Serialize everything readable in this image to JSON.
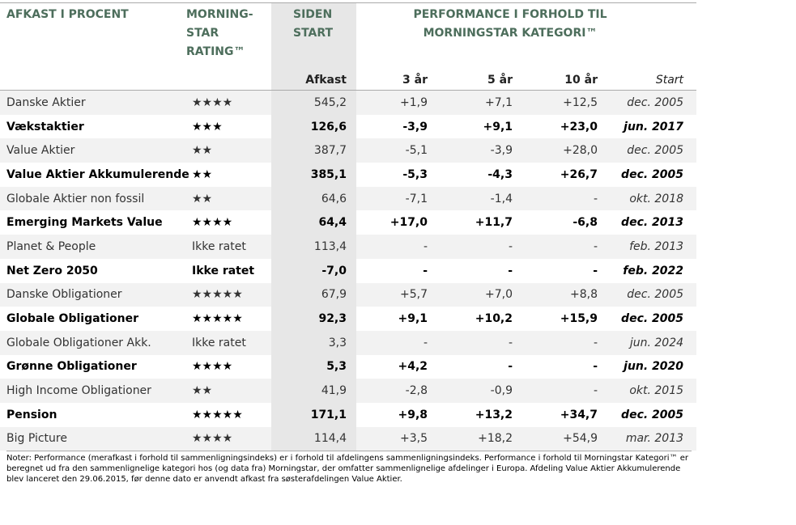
{
  "header": {
    "name": "AFKAST I PROCENT",
    "rating": [
      "MORNING-",
      "STAR",
      "RATING™"
    ],
    "since_start": [
      "SIDEN",
      "START"
    ],
    "performance": [
      "PERFORMANCE I FORHOLD TIL",
      "MORNINGSTAR KATEGORI™"
    ]
  },
  "subheader": [
    "Afkast",
    "3 år",
    "5 år",
    "10 år",
    "Start"
  ],
  "table": {
    "rows": [
      [
        "Danske Aktier",
        "★★★★",
        "545,2",
        "+1,9",
        "+7,1",
        "+12,5",
        "dec. 2005"
      ],
      [
        "Vækstaktier",
        "★★★",
        "126,6",
        "-3,9",
        "+9,1",
        "+23,0",
        "jun. 2017"
      ],
      [
        "Value Aktier",
        "★★",
        "387,7",
        "-5,1",
        "-3,9",
        "+28,0",
        "dec. 2005"
      ],
      [
        "Value Aktier Akkumulerende",
        "★★",
        "385,1",
        "-5,3",
        "-4,3",
        "+26,7",
        "dec. 2005"
      ],
      [
        "Globale Aktier non fossil",
        "★★",
        "64,6",
        "-7,1",
        "-1,4",
        "-",
        "okt. 2018"
      ],
      [
        "Emerging Markets Value",
        "★★★★",
        "64,4",
        "+17,0",
        "+11,7",
        "-6,8",
        "dec. 2013"
      ],
      [
        "Planet & People",
        "Ikke ratet",
        "113,4",
        "-",
        "-",
        "-",
        "feb. 2013"
      ],
      [
        "Net Zero 2050",
        "Ikke ratet",
        "-7,0",
        "-",
        "-",
        "-",
        "feb. 2022"
      ],
      [
        "Danske Obligationer",
        "★★★★★",
        "67,9",
        "+5,7",
        "+7,0",
        "+8,8",
        "dec. 2005"
      ],
      [
        "Globale Obligationer",
        "★★★★★",
        "92,3",
        "+9,1",
        "+10,2",
        "+15,9",
        "dec. 2005"
      ],
      [
        "Globale Obligationer Akk.",
        "Ikke ratet",
        "3,3",
        "-",
        "-",
        "-",
        "jun. 2024"
      ],
      [
        "Grønne Obligationer",
        "★★★★",
        "5,3",
        "+4,2",
        "-",
        "-",
        "jun. 2020"
      ],
      [
        "High Income Obligationer",
        "★★",
        "41,9",
        "-2,8",
        "-0,9",
        "-",
        "okt. 2015"
      ],
      [
        "Pension",
        "★★★★★",
        "171,1",
        "+9,8",
        "+13,2",
        "+34,7",
        "dec. 2005"
      ],
      [
        "Big Picture",
        "★★★★",
        "114,4",
        "+3,5",
        "+18,2",
        "+54,9",
        "mar. 2013"
      ]
    ]
  },
  "note": "Noter: Performance (merafkast i forhold til sammenligningsindeks) er i forhold til afdelingens sammenligningsindeks. Performance i forhold til Morningstar Kategori™ er beregnet ud fra den sammenlignelige kategori hos (og data fra) Morningstar, der omfatter sammenlignelige afdelinger i Europa. Afdeling Value Aktier Akkumulerende blev lanceret den 29.06.2015, før denne dato er anvendt afkast fra søsterafdelingen Value Aktier."
}
